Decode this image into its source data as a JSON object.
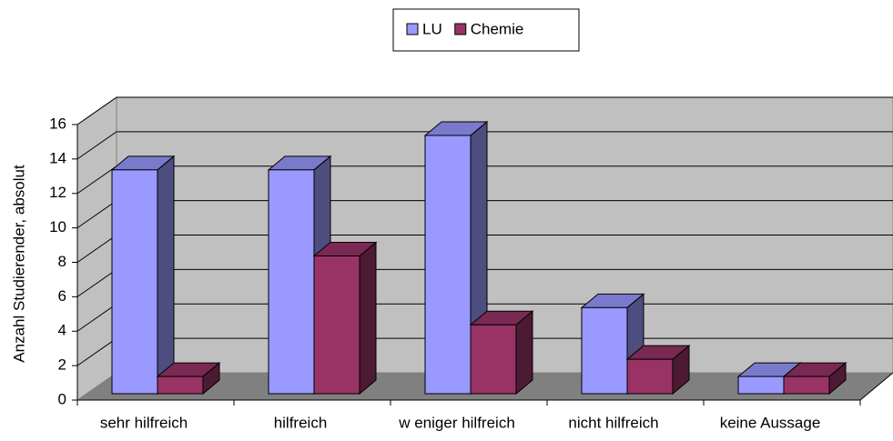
{
  "chart_data": {
    "type": "bar3d",
    "ylabel": "Anzahl Studierender, absolut",
    "categories": [
      "sehr hilfreich",
      "hilfreich",
      "w eniger hilfreich",
      "nicht hilfreich",
      "keine Aussage"
    ],
    "series": [
      {
        "name": "LU",
        "color": "#9999ff",
        "values": [
          13,
          13,
          15,
          5,
          1
        ]
      },
      {
        "name": "Chemie",
        "color": "#993366",
        "values": [
          1,
          8,
          4,
          2,
          1
        ]
      }
    ],
    "ylim": [
      0,
      16
    ],
    "yticks": [
      0,
      2,
      4,
      6,
      8,
      10,
      12,
      14,
      16
    ],
    "grid": true,
    "legend": "top"
  }
}
